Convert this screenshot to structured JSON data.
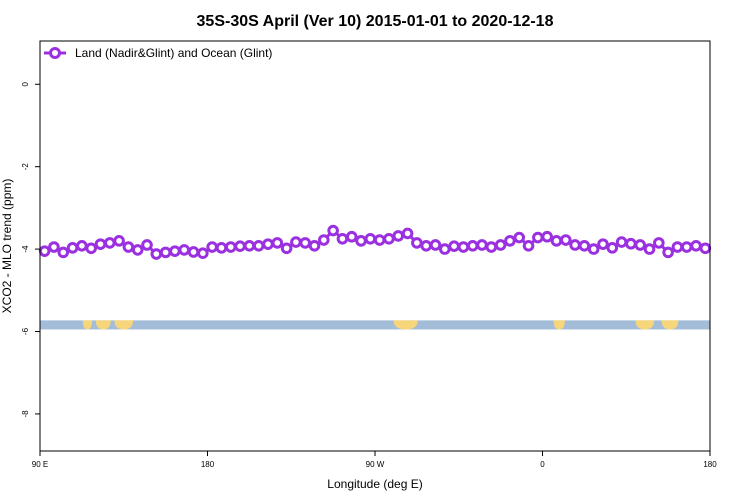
{
  "chart_data": {
    "type": "line",
    "title": "35S-30S April (Ver 10)   2015-01-01 to 2020-12-18",
    "xlabel": "Longitude (deg E)",
    "ylabel": "XCO2 - MLO trend (ppm)",
    "xlim": [
      90,
      450
    ],
    "ylim": [
      -8.9,
      1.05
    ],
    "x_ticks": [
      {
        "value": 90,
        "label": "90 E"
      },
      {
        "value": 180,
        "label": "180"
      },
      {
        "value": 270,
        "label": "90 W"
      },
      {
        "value": 360,
        "label": "0"
      },
      {
        "value": 450,
        "label": "180"
      }
    ],
    "y_ticks": [
      {
        "value": 0,
        "label": "0"
      },
      {
        "value": -2,
        "label": "-2"
      },
      {
        "value": -4,
        "label": "-4"
      },
      {
        "value": -6,
        "label": "-6"
      },
      {
        "value": -8,
        "label": "-8"
      }
    ],
    "grid": false,
    "legend_position": "top-left",
    "series": [
      {
        "name": "Land (Nadir&Glint) and Ocean (Glint)",
        "color": "#9b30e0",
        "marker": "open-circle",
        "x": [
          92.5,
          97.5,
          102.5,
          107.5,
          112.5,
          117.5,
          122.5,
          127.5,
          132.5,
          137.5,
          142.5,
          147.5,
          152.5,
          157.5,
          162.5,
          167.5,
          172.5,
          177.5,
          182.5,
          187.5,
          192.5,
          197.5,
          202.5,
          207.5,
          212.5,
          217.5,
          222.5,
          227.5,
          232.5,
          237.5,
          242.5,
          247.5,
          252.5,
          257.5,
          262.5,
          267.5,
          272.5,
          277.5,
          282.5,
          287.5,
          292.5,
          297.5,
          302.5,
          307.5,
          312.5,
          317.5,
          322.5,
          327.5,
          332.5,
          337.5,
          342.5,
          347.5,
          352.5,
          357.5,
          362.5,
          367.5,
          372.5,
          377.5,
          382.5,
          387.5,
          392.5,
          397.5,
          402.5,
          407.5,
          412.5,
          417.5,
          422.5,
          427.5,
          432.5,
          437.5,
          442.5,
          447.5
        ],
        "y": [
          -4.05,
          -3.95,
          -4.08,
          -3.97,
          -3.92,
          -3.98,
          -3.88,
          -3.85,
          -3.8,
          -3.95,
          -4.02,
          -3.9,
          -4.12,
          -4.08,
          -4.05,
          -4.02,
          -4.07,
          -4.1,
          -3.95,
          -3.97,
          -3.95,
          -3.93,
          -3.92,
          -3.92,
          -3.88,
          -3.85,
          -3.98,
          -3.83,
          -3.85,
          -3.92,
          -3.78,
          -3.55,
          -3.75,
          -3.7,
          -3.8,
          -3.75,
          -3.78,
          -3.75,
          -3.68,
          -3.62,
          -3.85,
          -3.92,
          -3.9,
          -4.0,
          -3.93,
          -3.95,
          -3.92,
          -3.9,
          -3.95,
          -3.9,
          -3.8,
          -3.72,
          -3.92,
          -3.72,
          -3.7,
          -3.8,
          -3.78,
          -3.9,
          -3.92,
          -4.0,
          -3.88,
          -3.97,
          -3.83,
          -3.87,
          -3.9,
          -4.0,
          -3.85,
          -4.08,
          -3.95,
          -3.95,
          -3.92,
          -3.98
        ]
      }
    ],
    "background_strip": {
      "y_from": -5.73,
      "y_to": -5.95,
      "ocean_color": "#a3bcd8",
      "land_color": "#f7d57a",
      "land_segments": [
        [
          113,
          118
        ],
        [
          120,
          128
        ],
        [
          130,
          140
        ],
        [
          280,
          293
        ],
        [
          366,
          372
        ],
        [
          410,
          420
        ],
        [
          424,
          433
        ]
      ]
    }
  }
}
